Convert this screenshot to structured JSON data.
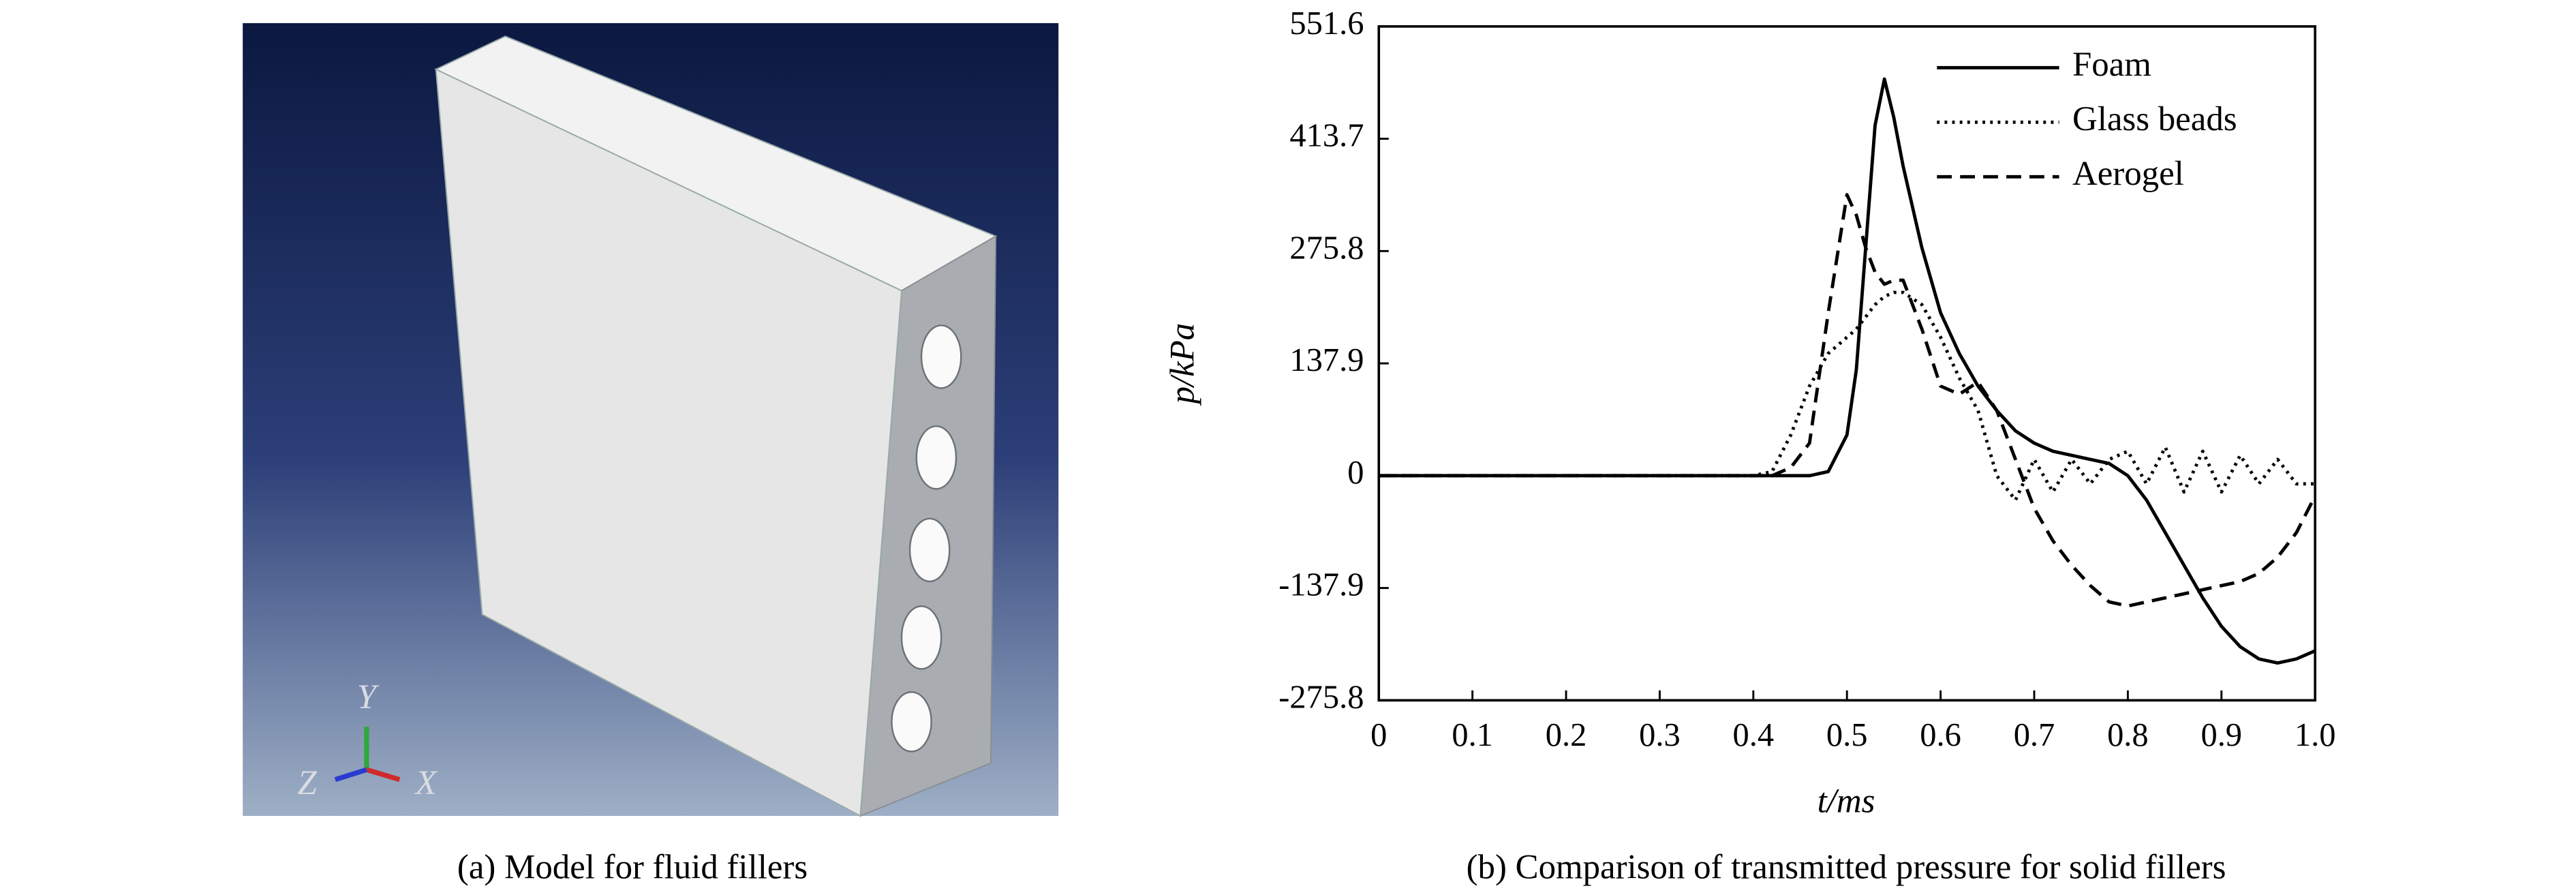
{
  "panel_a": {
    "caption": "(a) Model for fluid fillers",
    "triad": {
      "y": "Y",
      "z": "Z",
      "x": "X"
    }
  },
  "chart_data": {
    "type": "line",
    "caption": "(b) Comparison of transmitted pressure for solid fillers",
    "xlabel": "t/ms",
    "ylabel": "p/kPa",
    "x": [
      0,
      0.1,
      0.2,
      0.3,
      0.4,
      0.42,
      0.44,
      0.46,
      0.48,
      0.5,
      0.51,
      0.52,
      0.53,
      0.54,
      0.55,
      0.56,
      0.58,
      0.6,
      0.62,
      0.64,
      0.66,
      0.68,
      0.7,
      0.72,
      0.74,
      0.76,
      0.78,
      0.8,
      0.82,
      0.84,
      0.86,
      0.88,
      0.9,
      0.92,
      0.94,
      0.96,
      0.98,
      1
    ],
    "series": [
      {
        "name": "Foam",
        "color": "#000000",
        "linestyle": "solid",
        "values": [
          0,
          0,
          0,
          0,
          0,
          0,
          0,
          0,
          5,
          50,
          130,
          280,
          430,
          487,
          440,
          380,
          280,
          200,
          150,
          110,
          80,
          55,
          40,
          30,
          25,
          20,
          15,
          0,
          -30,
          -70,
          -110,
          -150,
          -185,
          -210,
          -225,
          -230,
          -225,
          -215
        ]
      },
      {
        "name": "Glass beads",
        "color": "#000000",
        "linestyle": "dotted",
        "values": [
          0,
          0,
          0,
          0,
          0,
          5,
          50,
          110,
          150,
          170,
          180,
          195,
          210,
          220,
          225,
          225,
          210,
          170,
          120,
          80,
          0,
          -30,
          20,
          -20,
          20,
          -10,
          20,
          30,
          -10,
          35,
          -20,
          30,
          -20,
          25,
          -10,
          20,
          -10,
          -10
        ]
      },
      {
        "name": "Aerogel",
        "color": "#000000",
        "linestyle": "dashed",
        "values": [
          0,
          0,
          0,
          0,
          0,
          0,
          10,
          40,
          200,
          345,
          320,
          280,
          250,
          235,
          240,
          240,
          180,
          110,
          100,
          115,
          80,
          20,
          -40,
          -80,
          -110,
          -135,
          -155,
          -160,
          -155,
          -150,
          -145,
          -140,
          -135,
          -130,
          -120,
          -100,
          -70,
          -25
        ]
      }
    ],
    "xlim": [
      0,
      1
    ],
    "xticks": [
      0,
      0.1,
      0.2,
      0.3,
      0.4,
      0.5,
      0.6,
      0.7,
      0.8,
      0.9,
      {
        "value": 1,
        "label": "1.0"
      }
    ],
    "ylim": [
      -275.8,
      551.6
    ],
    "yticks": [
      -275.8,
      -137.9,
      0,
      137.9,
      275.8,
      413.7,
      551.6
    ],
    "legend": "upper right",
    "grid": false
  }
}
